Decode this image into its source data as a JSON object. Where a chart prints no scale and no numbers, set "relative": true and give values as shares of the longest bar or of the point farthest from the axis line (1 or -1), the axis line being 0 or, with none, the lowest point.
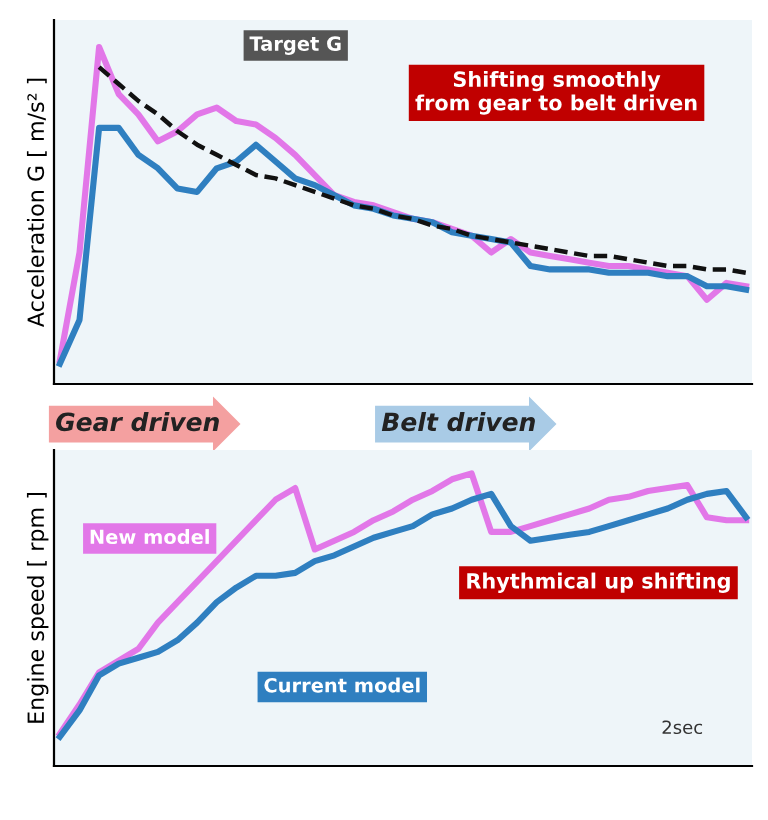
{
  "chart_data": [
    {
      "type": "line",
      "relative": true,
      "ylabel": "Acceleration G [ m/s² ]",
      "categories": [
        null,
        null,
        null,
        null,
        null,
        null,
        null,
        null,
        null,
        null,
        null,
        null,
        null,
        null,
        null,
        null,
        null,
        null,
        null,
        null,
        null,
        null,
        null,
        null,
        null,
        null,
        null,
        null,
        null,
        null,
        null,
        null,
        null,
        null,
        null,
        null
      ],
      "series": [
        {
          "color": "#e277e8",
          "values": [
            0.07,
            0.39,
            1.0,
            0.86,
            0.8,
            0.72,
            0.75,
            0.8,
            0.82,
            0.78,
            0.77,
            0.73,
            0.68,
            0.62,
            0.56,
            0.54,
            0.53,
            0.51,
            0.49,
            0.48,
            0.46,
            0.44,
            0.39,
            0.43,
            0.39,
            0.38,
            0.37,
            0.36,
            0.35,
            0.35,
            0.34,
            0.33,
            0.32,
            0.25,
            0.3,
            0.29
          ]
        },
        {
          "color": "#2f7fc0",
          "values": [
            0.06,
            0.19,
            0.76,
            0.76,
            0.68,
            0.64,
            0.58,
            0.57,
            0.64,
            0.66,
            0.71,
            0.66,
            0.61,
            0.59,
            0.56,
            0.53,
            0.52,
            0.5,
            0.49,
            0.48,
            0.45,
            0.44,
            0.43,
            0.42,
            0.35,
            0.34,
            0.34,
            0.34,
            0.33,
            0.33,
            0.33,
            0.32,
            0.32,
            0.29,
            0.29,
            0.28
          ]
        },
        {
          "name": "Target G",
          "color": "#111111",
          "line_style": "dashed",
          "values": [
            null,
            null,
            0.94,
            0.89,
            0.84,
            0.8,
            0.75,
            0.71,
            0.68,
            0.65,
            0.62,
            0.61,
            0.59,
            0.57,
            0.55,
            0.53,
            0.52,
            0.5,
            0.49,
            0.47,
            0.46,
            0.44,
            0.43,
            0.42,
            0.41,
            0.4,
            0.39,
            0.38,
            0.38,
            0.37,
            0.36,
            0.35,
            0.35,
            0.34,
            0.34,
            0.33
          ]
        }
      ],
      "annotations": [
        "Shifting smoothly\nfrom gear to belt driven",
        "Gear driven",
        "Belt driven"
      ]
    },
    {
      "type": "line",
      "relative": true,
      "ylabel": "Engine speed [ rpm ]",
      "categories": [
        null,
        null,
        null,
        null,
        null,
        null,
        null,
        null,
        null,
        null,
        null,
        null,
        null,
        null,
        null,
        null,
        null,
        null,
        null,
        null,
        null,
        null,
        null,
        null,
        null,
        null,
        null,
        null,
        null,
        null,
        null,
        null,
        null,
        null,
        null,
        null
      ],
      "series": [
        {
          "name": "New model",
          "color": "#e277e8",
          "values": [
            0.11,
            0.21,
            0.32,
            0.36,
            0.4,
            0.49,
            0.56,
            0.63,
            0.7,
            0.77,
            0.84,
            0.91,
            0.95,
            0.74,
            0.77,
            0.8,
            0.84,
            0.87,
            0.91,
            0.94,
            0.98,
            1.0,
            0.8,
            0.8,
            0.82,
            0.84,
            0.86,
            0.88,
            0.91,
            0.92,
            0.94,
            0.95,
            0.96,
            0.85,
            0.84,
            0.84
          ]
        },
        {
          "name": "Current model",
          "color": "#2f7fc0",
          "values": [
            0.1,
            0.19,
            0.31,
            0.35,
            0.37,
            0.39,
            0.43,
            0.49,
            0.56,
            0.61,
            0.65,
            0.65,
            0.66,
            0.7,
            0.72,
            0.75,
            0.78,
            0.8,
            0.82,
            0.86,
            0.88,
            0.91,
            0.93,
            0.82,
            0.77,
            0.78,
            0.79,
            0.8,
            0.82,
            0.84,
            0.86,
            0.88,
            0.91,
            0.93,
            0.94,
            0.85
          ]
        }
      ],
      "annotations": [
        "Rhythmical up shifting",
        "2sec"
      ]
    }
  ]
}
